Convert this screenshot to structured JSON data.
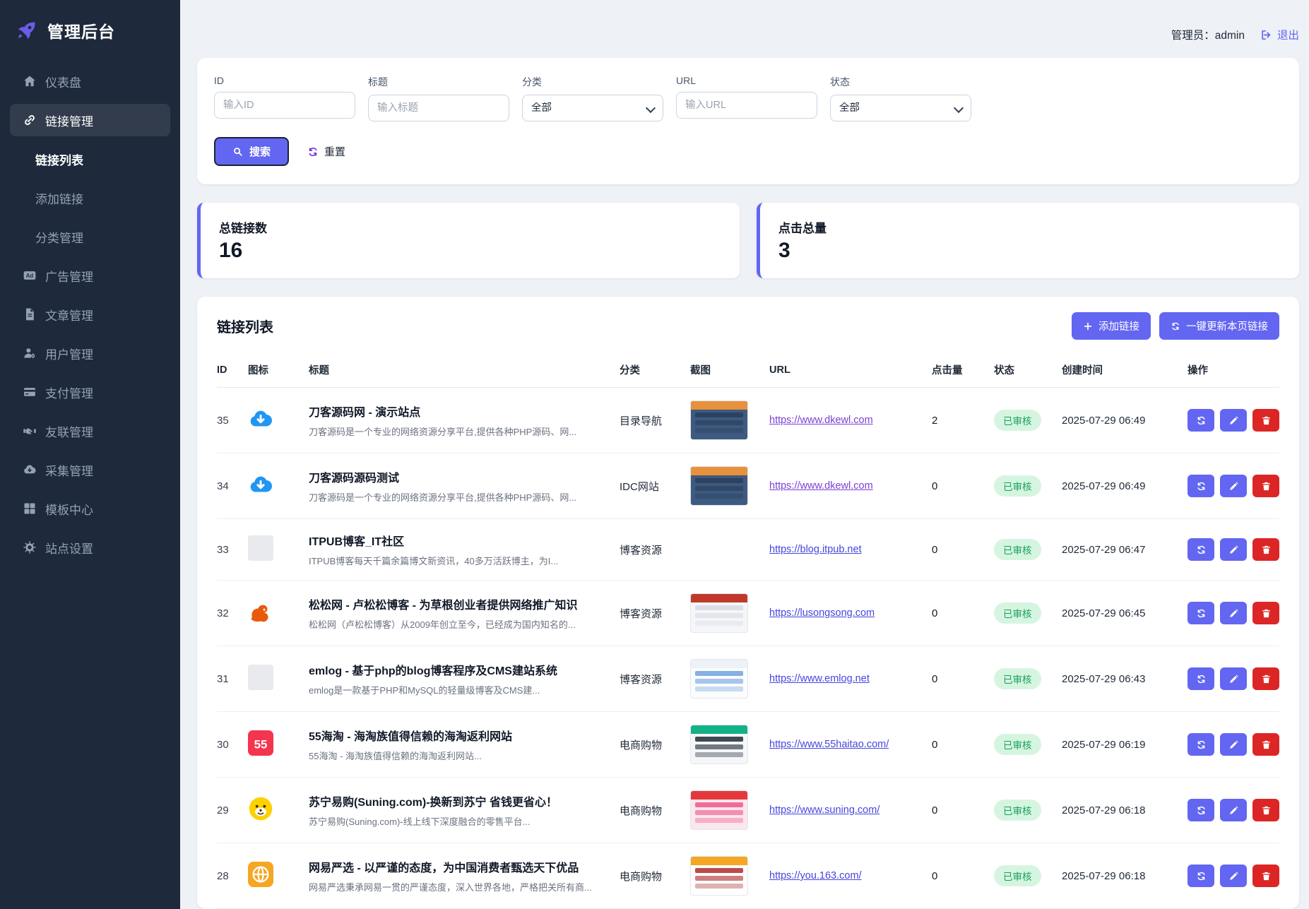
{
  "brand": {
    "title": "管理后台"
  },
  "sidebar": {
    "items": [
      {
        "key": "dashboard",
        "label": "仪表盘",
        "icon": "home-icon"
      },
      {
        "key": "links",
        "label": "链接管理",
        "icon": "link-icon",
        "active": true
      },
      {
        "key": "link-list",
        "label": "链接列表",
        "sub": true,
        "current": true
      },
      {
        "key": "add-link",
        "label": "添加链接",
        "sub": true
      },
      {
        "key": "categories",
        "label": "分类管理",
        "sub": true
      },
      {
        "key": "ads",
        "label": "广告管理",
        "icon": "ad-icon"
      },
      {
        "key": "articles",
        "label": "文章管理",
        "icon": "file-icon"
      },
      {
        "key": "users",
        "label": "用户管理",
        "icon": "user-gear-icon"
      },
      {
        "key": "payments",
        "label": "支付管理",
        "icon": "credit-card-icon"
      },
      {
        "key": "friend-links",
        "label": "友联管理",
        "icon": "handshake-icon"
      },
      {
        "key": "collect",
        "label": "采集管理",
        "icon": "cloud-download-icon"
      },
      {
        "key": "templates",
        "label": "模板中心",
        "icon": "grid-icon"
      },
      {
        "key": "site-settings",
        "label": "站点设置",
        "icon": "gear-icon"
      }
    ]
  },
  "header": {
    "admin_label": "管理员：admin",
    "logout_label": "退出"
  },
  "filters": {
    "fields": [
      {
        "name": "id",
        "label": "ID",
        "type": "input",
        "placeholder": "输入ID"
      },
      {
        "name": "title",
        "label": "标题",
        "type": "input",
        "placeholder": "输入标题"
      },
      {
        "name": "category",
        "label": "分类",
        "type": "select",
        "value": "全部"
      },
      {
        "name": "url",
        "label": "URL",
        "type": "input",
        "placeholder": "输入URL"
      },
      {
        "name": "status",
        "label": "状态",
        "type": "select",
        "value": "全部"
      }
    ],
    "search_label": "搜索",
    "reset_label": "重置"
  },
  "stats": [
    {
      "label": "总链接数",
      "value": "16"
    },
    {
      "label": "点击总量",
      "value": "3"
    }
  ],
  "table": {
    "title": "链接列表",
    "add_button": "添加链接",
    "update_button": "一键更新本页链接",
    "columns": [
      "ID",
      "图标",
      "标题",
      "分类",
      "截图",
      "URL",
      "点击量",
      "状态",
      "创建时间",
      "操作"
    ],
    "rows": [
      {
        "id": "35",
        "icon": "cloud-download-blue-icon",
        "title": "刀客源码网 - 演示站点",
        "subtitle": "刀客源码是一个专业的网络资源分享平台,提供各种PHP源码、网...",
        "category": "目录导航",
        "screenshot": "dkewl",
        "url": "https://www.dkewl.com",
        "visited": true,
        "clicks": "2",
        "status": "已审核",
        "created": "2025-07-29 06:49"
      },
      {
        "id": "34",
        "icon": "cloud-download-blue-icon",
        "title": "刀客源码源码测试",
        "subtitle": "刀客源码是一个专业的网络资源分享平台,提供各种PHP源码、网...",
        "category": "IDC网站",
        "screenshot": "dkewl",
        "url": "https://www.dkewl.com",
        "visited": true,
        "clicks": "0",
        "status": "已审核",
        "created": "2025-07-29 06:49"
      },
      {
        "id": "33",
        "icon": "placeholder-icon",
        "title": "ITPUB博客_IT社区",
        "subtitle": "ITPUB博客每天千篇余篇博文新资讯，40多万活跃博主，为I...",
        "category": "博客资源",
        "screenshot": null,
        "url": "https://blog.itpub.net",
        "clicks": "0",
        "status": "已审核",
        "created": "2025-07-29 06:47"
      },
      {
        "id": "32",
        "icon": "squirrel-icon",
        "title": "松松网 - 卢松松博客 - 为草根创业者提供网络推广知识",
        "subtitle": "松松网（卢松松博客）从2009年创立至今，已经成为国内知名的...",
        "category": "博客资源",
        "screenshot": "lusongsong",
        "url": "https://lusongsong.com",
        "clicks": "0",
        "status": "已审核",
        "created": "2025-07-29 06:45"
      },
      {
        "id": "31",
        "icon": "placeholder-icon",
        "title": "emlog - 基于php的blog博客程序及CMS建站系统",
        "subtitle": "emlog是一款基于PHP和MySQL的轻量级博客及CMS建...",
        "category": "博客资源",
        "screenshot": "emlog",
        "url": "https://www.emlog.net",
        "clicks": "0",
        "status": "已审核",
        "created": "2025-07-29 06:43"
      },
      {
        "id": "30",
        "icon": "55-badge-icon",
        "title": "55海淘 - 海淘族值得信赖的海淘返利网站",
        "subtitle": "55海淘 - 海淘族值得信赖的海淘返利网站...",
        "category": "电商购物",
        "screenshot": "haitao",
        "url": "https://www.55haitao.com/",
        "clicks": "0",
        "status": "已审核",
        "created": "2025-07-29 06:19"
      },
      {
        "id": "29",
        "icon": "suning-lion-icon",
        "title": "苏宁易购(Suning.com)-换新到苏宁 省钱更省心！",
        "subtitle": "苏宁易购(Suning.com)-线上线下深度融合的零售平台...",
        "category": "电商购物",
        "screenshot": "suning",
        "url": "https://www.suning.com/",
        "clicks": "0",
        "status": "已审核",
        "created": "2025-07-29 06:18"
      },
      {
        "id": "28",
        "icon": "globe-icon",
        "title": "网易严选 - 以严谨的态度，为中国消费者甄选天下优品",
        "subtitle": "网易严选秉承网易一贯的严谨态度，深入世界各地，严格把关所有商...",
        "category": "电商购物",
        "screenshot": "yanxuan",
        "url": "https://you.163.com/",
        "clicks": "0",
        "status": "已审核",
        "created": "2025-07-29 06:18"
      }
    ]
  },
  "colors": {
    "accent": "#6366f1",
    "logo_purple": "#6c5ce7",
    "danger": "#dc2626",
    "badge_bg": "#d6f5e1",
    "badge_text": "#18a05e",
    "link": "#4845dd",
    "link_visited": "#7b3fd4",
    "sidebar_bg": "#1e293b",
    "page_bg": "#eef1f6",
    "row_icon_blue": "#2196f3"
  },
  "screenshot_palettes": {
    "dkewl": {
      "top": "#e8913d",
      "body": "#3d5a80",
      "stripe": "#2b3f5c"
    },
    "lusongsong": {
      "top": "#c0392b",
      "body": "#f5f6f8",
      "stripe": "#d8dde4"
    },
    "emlog": {
      "top": "#eef2f7",
      "body": "#fbfcfe",
      "stripe": "#7aa7e0"
    },
    "haitao": {
      "top": "#12b286",
      "body": "#f4f6f8",
      "stripe": "#2c3640"
    },
    "suning": {
      "top": "#e4393c",
      "body": "#fbe7ee",
      "stripe": "#ef5d8f"
    },
    "yanxuan": {
      "top": "#f5a623",
      "body": "#ffffff",
      "stripe": "#b33939"
    }
  }
}
